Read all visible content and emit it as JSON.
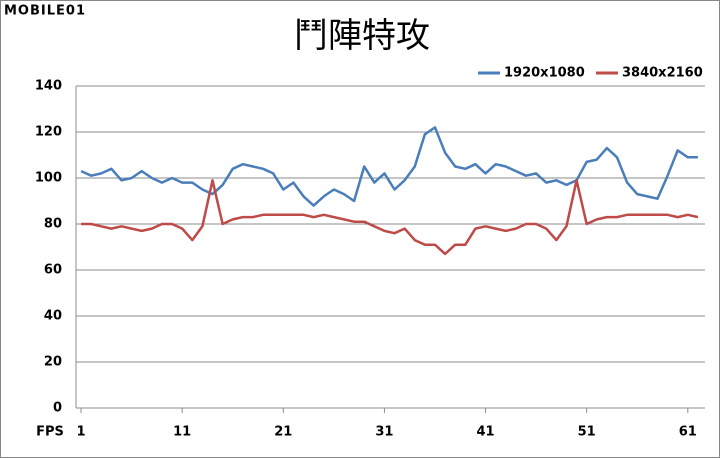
{
  "watermark": "MOBILE01",
  "chart_data": {
    "type": "line",
    "title": "鬥陣特攻",
    "xlabel": "FPS",
    "x": [
      1,
      2,
      3,
      4,
      5,
      6,
      7,
      8,
      9,
      10,
      11,
      12,
      13,
      14,
      15,
      16,
      17,
      18,
      19,
      20,
      21,
      22,
      23,
      24,
      25,
      26,
      27,
      28,
      29,
      30,
      31,
      32,
      33,
      34,
      35,
      36,
      37,
      38,
      39,
      40,
      41,
      42,
      43,
      44,
      45,
      46,
      47,
      48,
      49,
      50,
      51,
      52,
      53,
      54,
      55,
      56,
      57,
      58,
      59,
      60,
      61,
      62
    ],
    "series": [
      {
        "name": "1920x1080",
        "color": "#4a7ebb",
        "values": [
          103,
          101,
          102,
          104,
          99,
          100,
          103,
          100,
          98,
          100,
          98,
          98,
          95,
          93,
          97,
          104,
          106,
          105,
          104,
          102,
          95,
          98,
          92,
          88,
          92,
          95,
          93,
          90,
          105,
          98,
          102,
          95,
          99,
          105,
          119,
          122,
          111,
          105,
          104,
          106,
          102,
          106,
          105,
          103,
          101,
          102,
          98,
          99,
          97,
          99,
          107,
          108,
          113,
          109,
          98,
          93,
          92,
          91,
          101,
          112,
          109,
          109
        ]
      },
      {
        "name": "3840x2160",
        "color": "#be4b48",
        "values": [
          80,
          80,
          79,
          78,
          79,
          78,
          77,
          78,
          80,
          80,
          78,
          73,
          79,
          99,
          80,
          82,
          83,
          83,
          84,
          84,
          84,
          84,
          84,
          83,
          84,
          83,
          82,
          81,
          81,
          79,
          77,
          76,
          78,
          73,
          71,
          71,
          67,
          71,
          71,
          78,
          79,
          78,
          77,
          78,
          80,
          80,
          78,
          73,
          79,
          99,
          80,
          82,
          83,
          83,
          84,
          84,
          84,
          84,
          84,
          83,
          84,
          83
        ]
      }
    ],
    "xlim": [
      0.5,
      62.7
    ],
    "xticks": [
      1,
      11,
      21,
      31,
      41,
      51,
      61
    ],
    "ylim": [
      0,
      140
    ],
    "yticks": [
      0,
      20,
      40,
      60,
      80,
      100,
      120,
      140
    ],
    "grid": true,
    "legend": "top-right"
  }
}
